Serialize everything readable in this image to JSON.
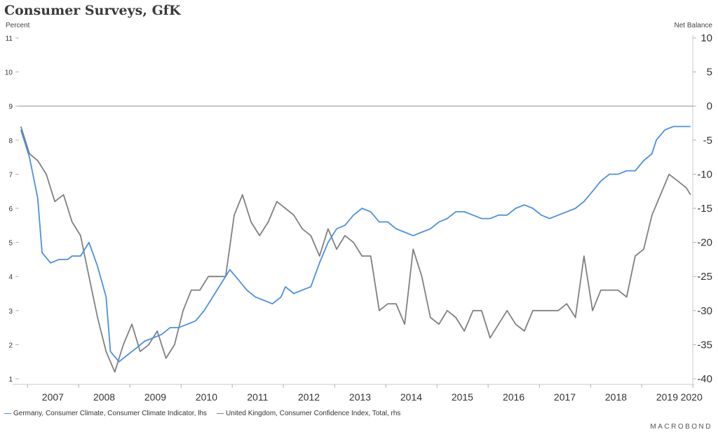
{
  "title": "Consumer Surveys, GfK",
  "left_unit": "Percent",
  "right_unit": "Net Balance",
  "brand": "MACROBOND",
  "chart_data": {
    "type": "line",
    "title": "Consumer Surveys, GfK",
    "x_range": [
      "2006-11-01",
      "2019-12-31"
    ],
    "x_ticks": [
      "2007",
      "2008",
      "2009",
      "2010",
      "2011",
      "2012",
      "2013",
      "2014",
      "2015",
      "2016",
      "2017",
      "2018",
      "2019",
      "2020"
    ],
    "y_left": {
      "label": "Percent",
      "range": [
        1,
        11
      ],
      "ticks": [
        1,
        2,
        3,
        4,
        5,
        6,
        7,
        8,
        9,
        10,
        11
      ]
    },
    "y_right": {
      "label": "Net Balance",
      "range": [
        -40,
        10
      ],
      "ticks": [
        10,
        5,
        0,
        -5,
        -10,
        -15,
        -20,
        -25,
        -30,
        -35,
        -40
      ]
    },
    "reference_line": {
      "axis": "right",
      "value": 0
    },
    "series": [
      {
        "name": "Germany, Consumer Climate, Consumer Climate Indicator, lhs",
        "axis": "left",
        "color": "#4a90e2",
        "points": [
          [
            "2006-11",
            8.3
          ],
          [
            "2007-01",
            7.5
          ],
          [
            "2007-03",
            6.3
          ],
          [
            "2007-04",
            4.7
          ],
          [
            "2007-06",
            4.4
          ],
          [
            "2007-08",
            4.5
          ],
          [
            "2007-10",
            4.5
          ],
          [
            "2007-11",
            4.6
          ],
          [
            "2008-01",
            4.6
          ],
          [
            "2008-03",
            5.0
          ],
          [
            "2008-05",
            4.3
          ],
          [
            "2008-07",
            3.4
          ],
          [
            "2008-08",
            1.8
          ],
          [
            "2008-10",
            1.5
          ],
          [
            "2008-12",
            1.7
          ],
          [
            "2009-02",
            1.9
          ],
          [
            "2009-04",
            2.1
          ],
          [
            "2009-06",
            2.2
          ],
          [
            "2009-08",
            2.3
          ],
          [
            "2009-10",
            2.5
          ],
          [
            "2009-12",
            2.5
          ],
          [
            "2010-02",
            2.6
          ],
          [
            "2010-04",
            2.7
          ],
          [
            "2010-06",
            3.0
          ],
          [
            "2010-08",
            3.4
          ],
          [
            "2010-10",
            3.8
          ],
          [
            "2010-12",
            4.2
          ],
          [
            "2011-02",
            3.9
          ],
          [
            "2011-04",
            3.6
          ],
          [
            "2011-06",
            3.4
          ],
          [
            "2011-08",
            3.3
          ],
          [
            "2011-10",
            3.2
          ],
          [
            "2011-12",
            3.4
          ],
          [
            "2012-01",
            3.7
          ],
          [
            "2012-03",
            3.5
          ],
          [
            "2012-05",
            3.6
          ],
          [
            "2012-07",
            3.7
          ],
          [
            "2012-09",
            4.4
          ],
          [
            "2012-11",
            5.0
          ],
          [
            "2013-01",
            5.4
          ],
          [
            "2013-03",
            5.5
          ],
          [
            "2013-05",
            5.8
          ],
          [
            "2013-07",
            6.0
          ],
          [
            "2013-09",
            5.9
          ],
          [
            "2013-11",
            5.6
          ],
          [
            "2014-01",
            5.6
          ],
          [
            "2014-03",
            5.4
          ],
          [
            "2014-05",
            5.3
          ],
          [
            "2014-07",
            5.2
          ],
          [
            "2014-09",
            5.3
          ],
          [
            "2014-11",
            5.4
          ],
          [
            "2015-01",
            5.6
          ],
          [
            "2015-03",
            5.7
          ],
          [
            "2015-05",
            5.9
          ],
          [
            "2015-07",
            5.9
          ],
          [
            "2015-09",
            5.8
          ],
          [
            "2015-11",
            5.7
          ],
          [
            "2016-01",
            5.7
          ],
          [
            "2016-03",
            5.8
          ],
          [
            "2016-05",
            5.8
          ],
          [
            "2016-07",
            6.0
          ],
          [
            "2016-09",
            6.1
          ],
          [
            "2016-11",
            6.0
          ],
          [
            "2017-01",
            5.8
          ],
          [
            "2017-03",
            5.7
          ],
          [
            "2017-05",
            5.8
          ],
          [
            "2017-07",
            5.9
          ],
          [
            "2017-09",
            6.0
          ],
          [
            "2017-11",
            6.2
          ],
          [
            "2018-01",
            6.5
          ],
          [
            "2018-03",
            6.8
          ],
          [
            "2018-05",
            7.0
          ],
          [
            "2018-07",
            7.0
          ],
          [
            "2018-09",
            7.1
          ],
          [
            "2018-11",
            7.1
          ],
          [
            "2019-01",
            7.4
          ],
          [
            "2019-03",
            7.6
          ],
          [
            "2019-04",
            8.0
          ],
          [
            "2019-06",
            8.3
          ],
          [
            "2019-08",
            8.4
          ],
          [
            "2019-10",
            8.4
          ],
          [
            "2019-12",
            8.4
          ]
        ]
      },
      {
        "name": "United Kingdom, Consumer Confidence Index, Total, rhs",
        "axis": "right",
        "color": "#808080",
        "points": [
          [
            "2006-11",
            -3.0
          ],
          [
            "2007-01",
            -7.0
          ],
          [
            "2007-03",
            -8.0
          ],
          [
            "2007-05",
            -10.0
          ],
          [
            "2007-07",
            -14.0
          ],
          [
            "2007-09",
            -13.0
          ],
          [
            "2007-11",
            -17.0
          ],
          [
            "2008-01",
            -19.0
          ],
          [
            "2008-03",
            -25.0
          ],
          [
            "2008-05",
            -31.0
          ],
          [
            "2008-07",
            -36.0
          ],
          [
            "2008-09",
            -39.0
          ],
          [
            "2008-11",
            -35.0
          ],
          [
            "2009-01",
            -32.0
          ],
          [
            "2009-03",
            -36.0
          ],
          [
            "2009-05",
            -35.0
          ],
          [
            "2009-07",
            -33.0
          ],
          [
            "2009-09",
            -37.0
          ],
          [
            "2009-11",
            -35.0
          ],
          [
            "2010-01",
            -30.0
          ],
          [
            "2010-03",
            -27.0
          ],
          [
            "2010-05",
            -27.0
          ],
          [
            "2010-07",
            -25.0
          ],
          [
            "2010-09",
            -25.0
          ],
          [
            "2010-11",
            -25.0
          ],
          [
            "2011-01",
            -16.0
          ],
          [
            "2011-03",
            -13.0
          ],
          [
            "2011-05",
            -17.0
          ],
          [
            "2011-07",
            -19.0
          ],
          [
            "2011-09",
            -17.0
          ],
          [
            "2011-11",
            -14.0
          ],
          [
            "2012-01",
            -15.0
          ],
          [
            "2012-03",
            -16.0
          ],
          [
            "2012-05",
            -18.0
          ],
          [
            "2012-07",
            -19.0
          ],
          [
            "2012-09",
            -22.0
          ],
          [
            "2012-11",
            -18.0
          ],
          [
            "2013-01",
            -21.0
          ],
          [
            "2013-03",
            -19.0
          ],
          [
            "2013-05",
            -20.0
          ],
          [
            "2013-07",
            -22.0
          ],
          [
            "2013-09",
            -22.0
          ],
          [
            "2013-11",
            -30.0
          ],
          [
            "2014-01",
            -29.0
          ],
          [
            "2014-03",
            -29.0
          ],
          [
            "2014-05",
            -32.0
          ],
          [
            "2014-07",
            -21.0
          ],
          [
            "2014-09",
            -25.0
          ],
          [
            "2014-11",
            -31.0
          ],
          [
            "2015-01",
            -32.0
          ],
          [
            "2015-03",
            -30.0
          ],
          [
            "2015-05",
            -31.0
          ],
          [
            "2015-07",
            -33.0
          ],
          [
            "2015-09",
            -30.0
          ],
          [
            "2015-11",
            -30.0
          ],
          [
            "2016-01",
            -34.0
          ],
          [
            "2016-03",
            -32.0
          ],
          [
            "2016-05",
            -30.0
          ],
          [
            "2016-07",
            -32.0
          ],
          [
            "2016-09",
            -33.0
          ],
          [
            "2016-11",
            -30.0
          ],
          [
            "2017-01",
            -30.0
          ],
          [
            "2017-03",
            -30.0
          ],
          [
            "2017-05",
            -30.0
          ],
          [
            "2017-07",
            -29.0
          ],
          [
            "2017-09",
            -31.0
          ],
          [
            "2017-11",
            -22.0
          ],
          [
            "2018-01",
            -30.0
          ],
          [
            "2018-03",
            -27.0
          ],
          [
            "2018-05",
            -27.0
          ],
          [
            "2018-07",
            -27.0
          ],
          [
            "2018-09",
            -28.0
          ],
          [
            "2018-11",
            -22.0
          ],
          [
            "2019-01",
            -21.0
          ],
          [
            "2019-03",
            -16.0
          ],
          [
            "2019-05",
            -13.0
          ],
          [
            "2019-07",
            -10.0
          ],
          [
            "2019-09",
            -11.0
          ],
          [
            "2019-11",
            -12.0
          ],
          [
            "2019-12",
            -13.0
          ]
        ]
      }
    ],
    "legend_position": "bottom-left",
    "grid": false
  }
}
